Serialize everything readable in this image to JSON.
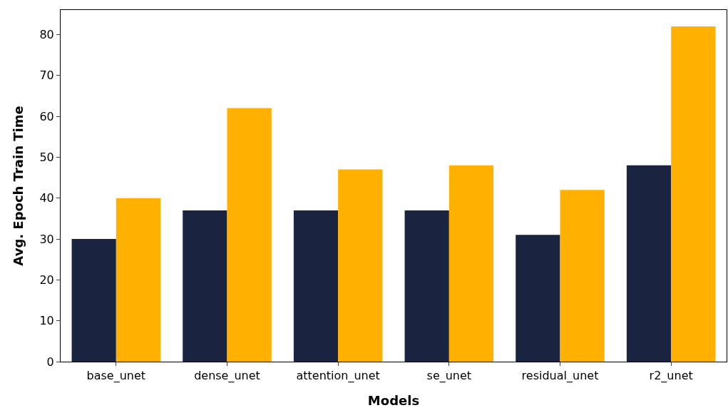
{
  "chart_data": {
    "type": "bar",
    "xlabel": "Models",
    "ylabel": "Avg. Epoch Train Time",
    "categories": [
      "base_unet",
      "dense_unet",
      "attention_unet",
      "se_unet",
      "residual_unet",
      "r2_unet"
    ],
    "series": [
      {
        "color": "#1a2340",
        "values": [
          30,
          37,
          37,
          37,
          31,
          48
        ]
      },
      {
        "color": "#ffb000",
        "values": [
          40,
          62,
          47,
          48,
          42,
          82
        ]
      }
    ],
    "ylim": [
      0,
      86
    ],
    "yticks": [
      0,
      10,
      20,
      30,
      40,
      50,
      60,
      70,
      80
    ],
    "grid": false
  }
}
